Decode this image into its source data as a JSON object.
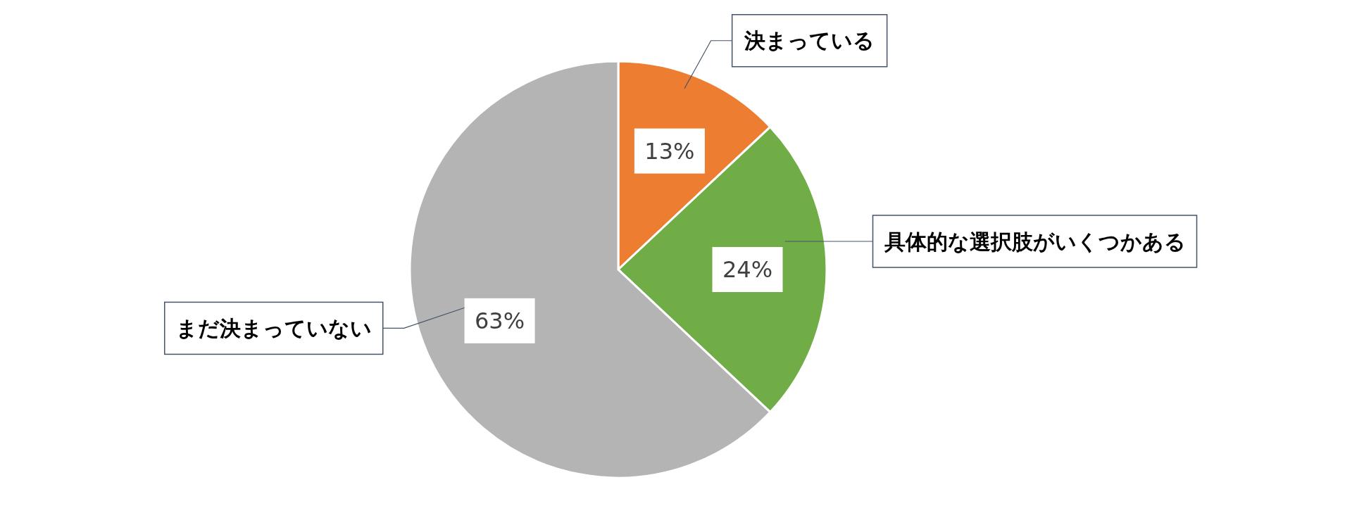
{
  "chart_data": {
    "type": "pie",
    "categories": [
      "決まっている",
      "具体的な選択肢がいくつかある",
      "まだ決まっていない"
    ],
    "values": [
      13,
      24,
      63
    ],
    "colors": [
      "#ed7d31",
      "#70ad47",
      "#b4b4b4"
    ],
    "value_labels": [
      "13%",
      "24%",
      "63%"
    ],
    "legend": false
  }
}
